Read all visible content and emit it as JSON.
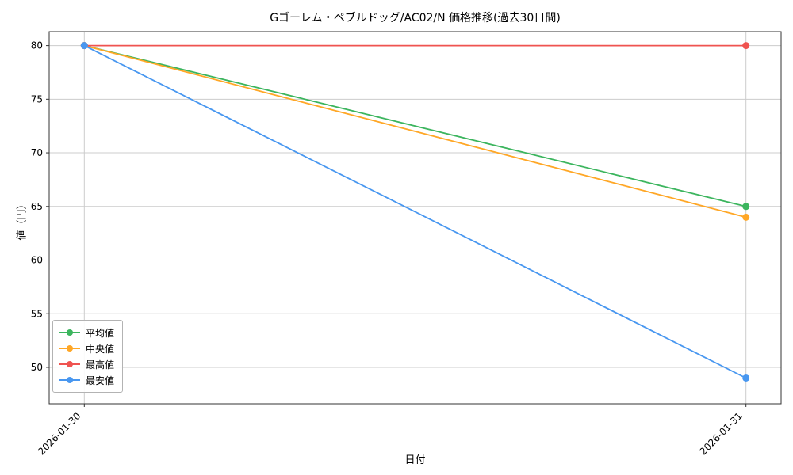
{
  "chart_data": {
    "type": "line",
    "title": "Gゴーレム・ペブルドッグ/AC02/N 価格推移(過去30日間)",
    "xlabel": "日付",
    "ylabel": "値（円）",
    "categories": [
      "2026-01-30",
      "2026-01-31"
    ],
    "series": [
      {
        "name": "平均値",
        "values": [
          80,
          65
        ],
        "color": "#3cb55e"
      },
      {
        "name": "中央値",
        "values": [
          80,
          64
        ],
        "color": "#ffa726"
      },
      {
        "name": "最高値",
        "values": [
          80,
          80
        ],
        "color": "#ef5350"
      },
      {
        "name": "最安値",
        "values": [
          80,
          49
        ],
        "color": "#4897f0"
      }
    ],
    "yticks": [
      50,
      55,
      60,
      65,
      70,
      75,
      80
    ],
    "ylim": [
      46.6,
      81.3
    ],
    "grid": true,
    "legend_position": "lower left",
    "colors": {
      "grid": "#cccccc",
      "frame": "#333333",
      "tick_label": "#000000"
    }
  }
}
